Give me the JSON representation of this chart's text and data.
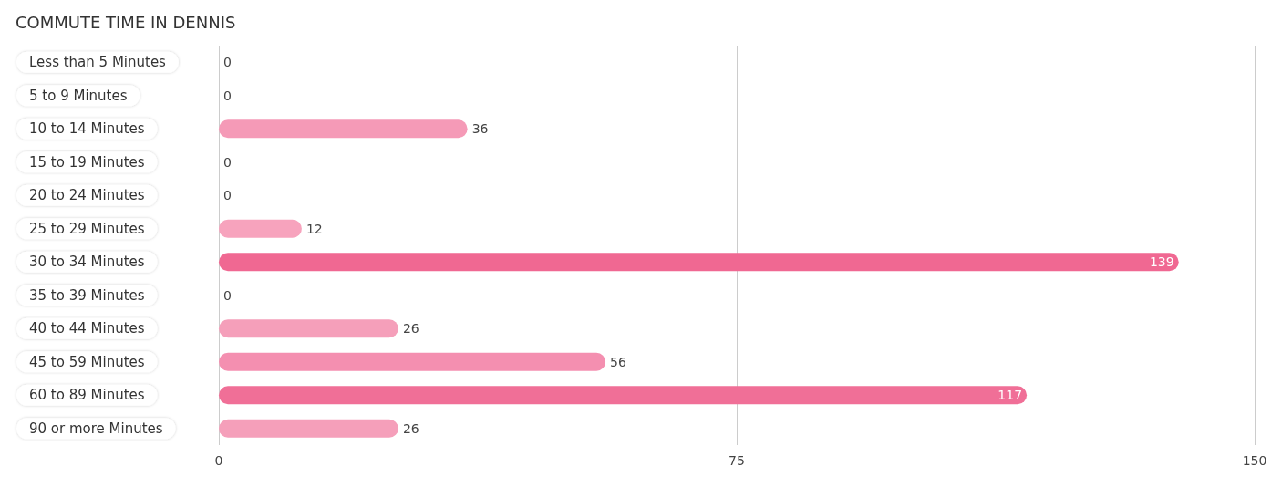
{
  "chart_data": {
    "type": "bar",
    "orientation": "horizontal",
    "title": "COMMUTE TIME IN DENNIS",
    "categories": [
      "Less than 5 Minutes",
      "5 to 9 Minutes",
      "10 to 14 Minutes",
      "15 to 19 Minutes",
      "20 to 24 Minutes",
      "25 to 29 Minutes",
      "30 to 34 Minutes",
      "35 to 39 Minutes",
      "40 to 44 Minutes",
      "45 to 59 Minutes",
      "60 to 89 Minutes",
      "90 or more Minutes"
    ],
    "values": [
      0,
      0,
      36,
      0,
      0,
      12,
      139,
      0,
      26,
      56,
      117,
      26
    ],
    "colors": [
      "#f8a7c1",
      "#f8a7c1",
      "#f59ab7",
      "#f8a7c1",
      "#f8a7c1",
      "#f7a3bd",
      "#f06892",
      "#f8a7c1",
      "#f59fba",
      "#f48fb0",
      "#f06f97",
      "#f59fba"
    ],
    "xlim": [
      0,
      150
    ],
    "xticks": [
      0,
      75,
      150
    ],
    "grid": "x",
    "data_labels": true
  }
}
